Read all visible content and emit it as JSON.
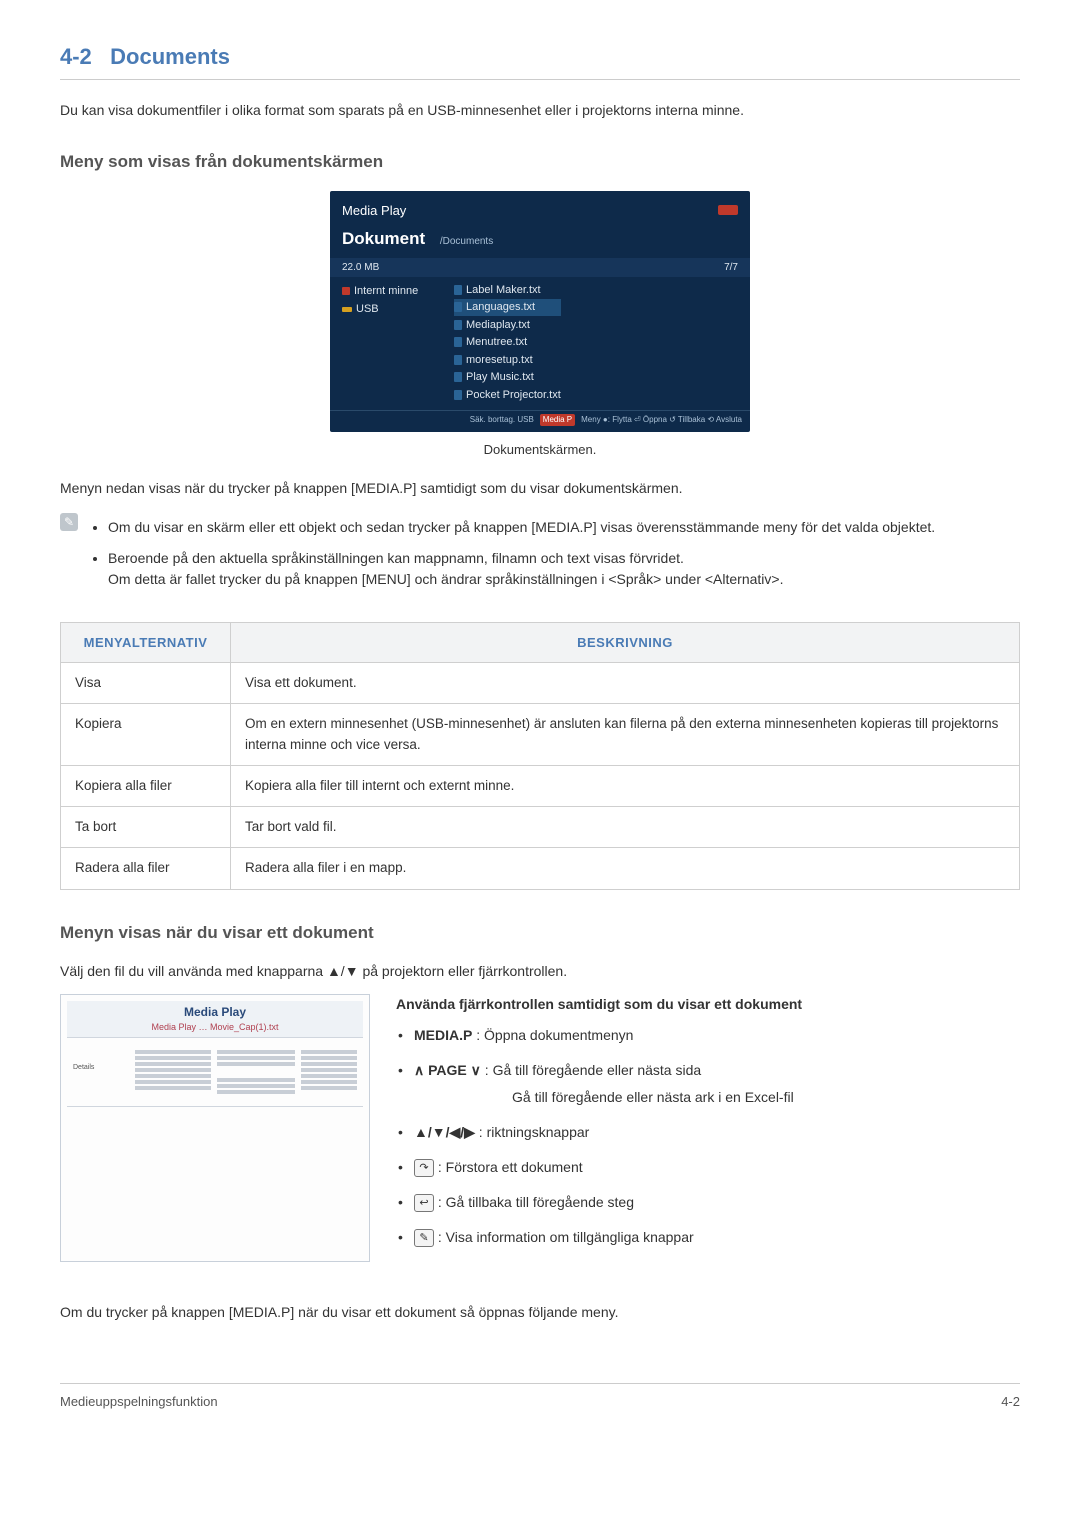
{
  "colors": {
    "accent": "#4a7bb5",
    "border": "#cccccc",
    "text": "#333333",
    "tableHeaderBg": "#f2f3f4",
    "screenshotBg": "#0e2a4a"
  },
  "section": {
    "number": "4-2",
    "title": "Documents"
  },
  "intro": "Du kan visa dokumentfiler i olika format som sparats på en USB-minnesenhet eller i projektorns interna minne.",
  "sub1": "Meny som visas från dokumentskärmen",
  "screenshot1": {
    "appTitle": "Media Play",
    "screenTitle": "Dokument",
    "path": "/Documents",
    "size": "22.0 MB",
    "count": "7/7",
    "leftItems": [
      "Internt minne",
      "USB"
    ],
    "files": [
      "Label Maker.txt",
      "Languages.txt",
      "Mediaplay.txt",
      "Menutree.txt",
      "moresetup.txt",
      "Play Music.txt",
      "Pocket Projector.txt"
    ],
    "selectedIdx": 1,
    "footerLeft": "Säk. borttag. USB",
    "footerBadge": "Media P",
    "footerRight": "Meny  ●: Flytta  ⏎ Öppna  ↺ Tillbaka  ⟲ Avsluta"
  },
  "caption": "Dokumentskärmen.",
  "para1": "Menyn nedan visas när du trycker på knappen [MEDIA.P] samtidigt som du visar dokumentskärmen.",
  "note": {
    "items": [
      "Om du visar en skärm eller ett objekt och sedan trycker på knappen [MEDIA.P] visas överensstämmande meny för det valda objektet.",
      "Beroende på den aktuella språkinställningen kan mappnamn, filnamn och text visas förvridet.\nOm detta är fallet trycker du på knappen [MENU] och ändrar språkinställningen i <Språk> under <Alternativ>."
    ]
  },
  "table": {
    "head": [
      "MENYALTERNATIV",
      "BESKRIVNING"
    ],
    "rows": [
      [
        "Visa",
        "Visa ett dokument."
      ],
      [
        "Kopiera",
        "Om en extern minnesenhet (USB-minnesenhet) är ansluten kan filerna på den externa minnesenheten kopieras till projektorns interna minne och vice versa."
      ],
      [
        "Kopiera alla filer",
        "Kopiera alla filer till internt och externt minne."
      ],
      [
        "Ta bort",
        "Tar bort vald fil."
      ],
      [
        "Radera alla filer",
        "Radera alla filer i en mapp."
      ]
    ]
  },
  "sub2": "Menyn visas när du visar ett dokument",
  "para2": "Välj den fil du vill använda med knapparna ▲/▼ på projektorn eller fjärrkontrollen.",
  "screenshot2": {
    "title": "Media Play",
    "path": "Media Play … Movie_Cap(1).txt"
  },
  "remote": {
    "title": "Använda fjärrkontrollen samtidigt som du visar ett dokument",
    "items": [
      {
        "key": "MEDIA.P",
        "text": " : Öppna dokumentmenyn",
        "type": "bold"
      },
      {
        "key": "∧ PAGE ∨",
        "text": " :    Gå till föregående eller nästa sida",
        "sub": "Gå till föregående eller nästa ark i en Excel-fil",
        "type": "caret"
      },
      {
        "key": "▲/▼/◀/▶",
        "text": " : riktningsknappar",
        "type": "bold"
      },
      {
        "icon": "↷",
        "text": " : Förstora ett dokument",
        "type": "icon",
        "iconName": "enlarge-icon"
      },
      {
        "icon": "↩",
        "text": " : Gå tillbaka till föregående steg",
        "type": "icon",
        "iconName": "back-icon"
      },
      {
        "icon": "✎",
        "text": " : Visa information om tillgängliga knappar",
        "type": "icon",
        "iconName": "info-icon"
      }
    ]
  },
  "para3": "Om du trycker på knappen [MEDIA.P] när du visar ett dokument så öppnas följande meny.",
  "footer": {
    "left": "Medieuppspelningsfunktion",
    "right": "4-2"
  }
}
